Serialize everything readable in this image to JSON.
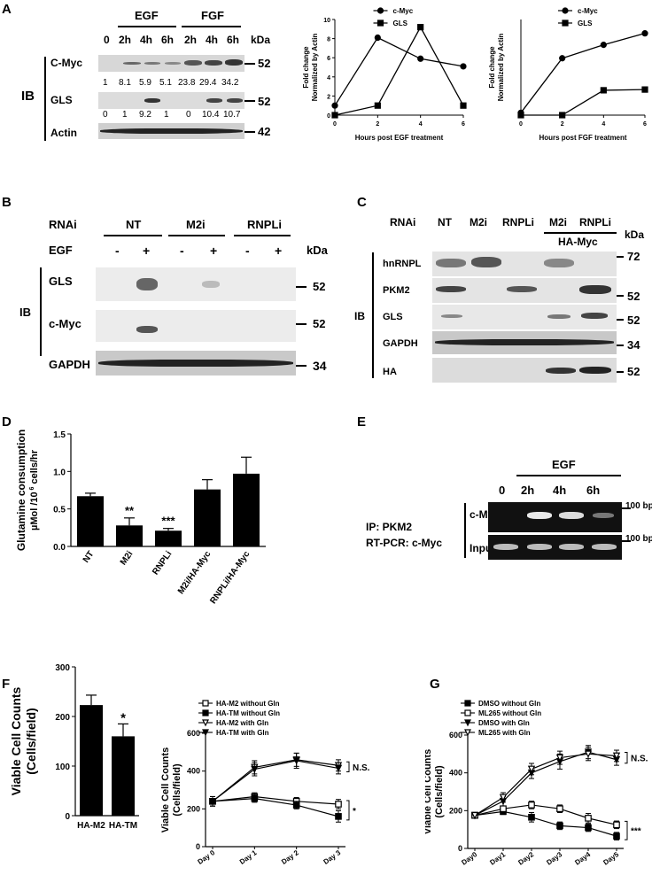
{
  "panels": {
    "A": {
      "letter": "A"
    },
    "B": {
      "letter": "B"
    },
    "C": {
      "letter": "C"
    },
    "D": {
      "letter": "D"
    },
    "E": {
      "letter": "E"
    },
    "F": {
      "letter": "F"
    },
    "G": {
      "letter": "G"
    }
  },
  "panelA": {
    "groups": [
      "EGF",
      "FGF"
    ],
    "lanes": [
      "0",
      "2h",
      "4h",
      "6h",
      "2h",
      "4h",
      "6h"
    ],
    "kda": "kDa",
    "ib": "IB",
    "rows": [
      {
        "name": "C-Myc",
        "kda": "52",
        "quant": [
          "1",
          "8.1",
          "5.9",
          "5.1",
          "23.8",
          "29.4",
          "34.2"
        ]
      },
      {
        "name": "GLS",
        "kda": "52",
        "quant": [
          "0",
          "1",
          "9.2",
          "1",
          "0",
          "10.4",
          "10.7"
        ]
      },
      {
        "name": "Actin",
        "kda": "42"
      }
    ]
  },
  "panelB": {
    "rnai_label": "RNAi",
    "egf_label": "EGF",
    "groups": [
      "NT",
      "M2i",
      "RNPLi"
    ],
    "egf_states": [
      "-",
      "+",
      "-",
      "+",
      "-",
      "+"
    ],
    "kda": "kDa",
    "ib": "IB",
    "rows": [
      {
        "name": "GLS",
        "kda": "52"
      },
      {
        "name": "c-Myc",
        "kda": "52"
      },
      {
        "name": "GAPDH",
        "kda": "34"
      }
    ]
  },
  "panelC": {
    "rnai_label": "RNAi",
    "lanes": [
      "NT",
      "M2i",
      "RNPLi",
      "M2i",
      "RNPLi"
    ],
    "ha_myc": "HA-Myc",
    "kda": "kDa",
    "ib": "IB",
    "rows": [
      {
        "name": "hnRNPL",
        "kda": "72"
      },
      {
        "name": "PKM2",
        "kda": "52"
      },
      {
        "name": "GLS",
        "kda": "52"
      },
      {
        "name": "GAPDH",
        "kda": "34"
      },
      {
        "name": "HA",
        "kda": "52"
      }
    ]
  },
  "panelE": {
    "egf": "EGF",
    "lanes": [
      "0",
      "2h",
      "4h",
      "6h"
    ],
    "ip": "IP: PKM2",
    "rtpcr": "RT-PCR: c-Myc",
    "rows": [
      {
        "name": "c-Myc",
        "size": "100 bp"
      },
      {
        "name": "Input",
        "size": "100 bp"
      }
    ]
  },
  "chart_data": [
    {
      "id": "A-EGF",
      "type": "line",
      "x": [
        0,
        2,
        4,
        6
      ],
      "xlabel": "Hours post EGF treatment",
      "ylabel": "Fold change Normalized by Actin",
      "ylim": [
        0,
        10
      ],
      "yticks": [
        0,
        2,
        4,
        6,
        8,
        10
      ],
      "xticks": [
        0,
        2,
        4,
        6
      ],
      "legend_position": "top-center",
      "series": [
        {
          "name": "c-Myc",
          "marker": "circle",
          "values": [
            1,
            8.1,
            5.9,
            5.1
          ]
        },
        {
          "name": "GLS",
          "marker": "square",
          "values": [
            0,
            1,
            9.2,
            1
          ]
        }
      ]
    },
    {
      "id": "A-FGF",
      "type": "line",
      "x": [
        0,
        2,
        4,
        6
      ],
      "xlabel": "Hours post FGF treatment",
      "ylabel": "Fold change Normalized by Actin",
      "ylim": [
        0,
        40
      ],
      "yticks": [],
      "xticks": [
        0,
        2,
        4,
        6
      ],
      "legend_position": "top-center",
      "series": [
        {
          "name": "c-Myc",
          "marker": "circle",
          "values": [
            1,
            23.8,
            29.4,
            34.2
          ]
        },
        {
          "name": "GLS",
          "marker": "square",
          "values": [
            0,
            0,
            10.4,
            10.7
          ]
        }
      ]
    },
    {
      "id": "D",
      "type": "bar",
      "categories": [
        "NT",
        "M2i",
        "RNPLi",
        "M2i/HA-Myc",
        "RNPLi/HA-Myc"
      ],
      "values": [
        0.67,
        0.28,
        0.21,
        0.76,
        0.97
      ],
      "errors": [
        0.04,
        0.1,
        0.03,
        0.13,
        0.22
      ],
      "annotations": [
        "",
        "**",
        "***",
        "",
        ""
      ],
      "ylabel": "Glutamine consumption",
      "ylabel2": "µMol /10",
      "ylabel2_sup": "6",
      "ylabel2_tail": " cells/hr",
      "ylim": [
        0,
        1.5
      ],
      "yticks": [
        "0.0",
        "0.5",
        "1.0",
        "1.5"
      ]
    },
    {
      "id": "F-bar",
      "type": "bar",
      "categories": [
        "HA-M2",
        "HA-TM"
      ],
      "values": [
        223,
        160
      ],
      "errors": [
        20,
        25
      ],
      "annotations": [
        "",
        "*"
      ],
      "ylabel": "Viable Cell Counts",
      "ylabel2": "(Cells/field)",
      "ylim": [
        0,
        300
      ],
      "yticks": [
        "0",
        "100",
        "200",
        "300"
      ]
    },
    {
      "id": "F-line",
      "type": "line",
      "x": [
        "Day 0",
        "Day 1",
        "Day 2",
        "Day 3"
      ],
      "ylabel": "Viable Cell Counts",
      "ylabel2": "(Cells/field)",
      "ylim": [
        0,
        600
      ],
      "yticks": [
        "0",
        "200",
        "400",
        "600"
      ],
      "legend_position": "top-left",
      "brackets": [
        "N.S.",
        "*"
      ],
      "series": [
        {
          "name": "HA-M2 without Gln",
          "marker": "square-open",
          "values": [
            240,
            265,
            240,
            225
          ],
          "err": [
            25,
            20,
            20,
            25
          ]
        },
        {
          "name": "HA-TM without Gln",
          "marker": "square",
          "values": [
            240,
            255,
            220,
            160
          ],
          "err": [
            25,
            20,
            20,
            30
          ]
        },
        {
          "name": "HA-M2 with Gln",
          "marker": "triangle-open",
          "values": [
            240,
            420,
            460,
            430
          ],
          "err": [
            25,
            35,
            35,
            30
          ]
        },
        {
          "name": "HA-TM with Gln",
          "marker": "triangle",
          "values": [
            240,
            410,
            455,
            415
          ],
          "err": [
            25,
            35,
            40,
            30
          ]
        }
      ]
    },
    {
      "id": "G",
      "type": "line",
      "x": [
        "Day0",
        "Day1",
        "Day2",
        "Day3",
        "Day4",
        "Day5"
      ],
      "ylabel": "Viable Cell Counts",
      "ylabel2": "(Cells/field)",
      "ylim": [
        0,
        600
      ],
      "yticks": [
        "0",
        "200",
        "400",
        "600"
      ],
      "legend_position": "top-left",
      "brackets": [
        "N.S.",
        "***"
      ],
      "series": [
        {
          "name": "DMSO without Gln",
          "marker": "square",
          "values": [
            175,
            195,
            165,
            120,
            110,
            65
          ],
          "err": [
            15,
            15,
            25,
            20,
            20,
            20
          ]
        },
        {
          "name": "ML265 without Gln",
          "marker": "square-open",
          "values": [
            175,
            210,
            230,
            210,
            160,
            125
          ],
          "err": [
            15,
            15,
            20,
            20,
            25,
            20
          ]
        },
        {
          "name": "DMSO with Gln",
          "marker": "triangle",
          "values": [
            175,
            250,
            400,
            460,
            510,
            470
          ],
          "err": [
            15,
            25,
            30,
            40,
            35,
            30
          ]
        },
        {
          "name": "ML265 with Gln",
          "marker": "triangle-open",
          "values": [
            175,
            270,
            420,
            480,
            500,
            490
          ],
          "err": [
            15,
            25,
            30,
            35,
            35,
            30
          ]
        }
      ]
    }
  ]
}
